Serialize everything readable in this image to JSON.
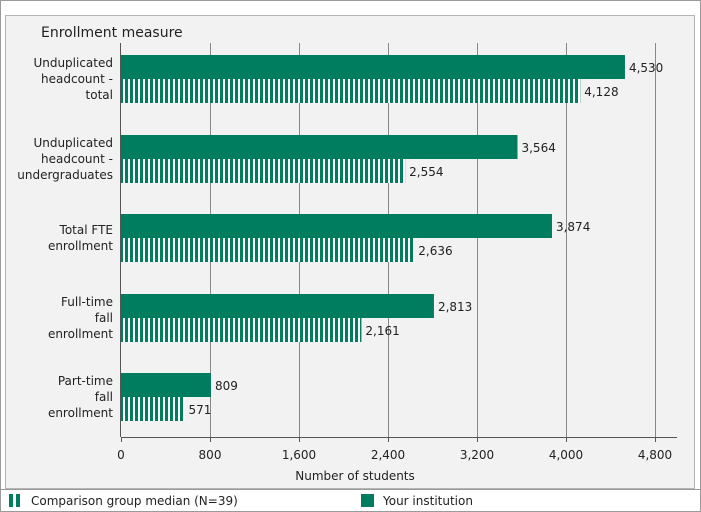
{
  "chart_data": {
    "type": "bar",
    "orientation": "horizontal",
    "title": "Enrollment measure",
    "xlabel": "Number of students",
    "ylabel": "",
    "xlim": [
      0,
      4800
    ],
    "xticks": [
      0,
      800,
      1600,
      2400,
      3200,
      4000,
      4800
    ],
    "xtick_labels": [
      "0",
      "800",
      "1,600",
      "2,400",
      "3,200",
      "4,000",
      "4,800"
    ],
    "grid": true,
    "legend_position": "bottom",
    "categories": [
      [
        "Unduplicated",
        "headcount -",
        "total"
      ],
      [
        "Unduplicated",
        "headcount -",
        "undergraduates"
      ],
      [
        "Total FTE",
        "enrollment"
      ],
      [
        "Full-time",
        "fall",
        "enrollment"
      ],
      [
        "Part-time",
        "fall",
        "enrollment"
      ]
    ],
    "series": [
      {
        "name": "Your institution",
        "values": [
          4530,
          3564,
          3874,
          2813,
          809
        ],
        "value_labels": [
          "4,530",
          "3,564",
          "3,874",
          "2,813",
          "809"
        ],
        "color": "#007c5f",
        "pattern": "solid"
      },
      {
        "name": "Comparison group median (N=39)",
        "values": [
          4128,
          2554,
          2636,
          2161,
          571
        ],
        "value_labels": [
          "4,128",
          "2,554",
          "2,636",
          "2,161",
          "571"
        ],
        "color": "#007c5f",
        "pattern": "vertical-stripes"
      }
    ]
  },
  "legend": {
    "comparison_label": "Comparison group median (N=39)",
    "institution_label": "Your institution"
  },
  "colors": {
    "accent": "#007c5f",
    "panel": "#f2f2f2",
    "grid": "#888888"
  }
}
